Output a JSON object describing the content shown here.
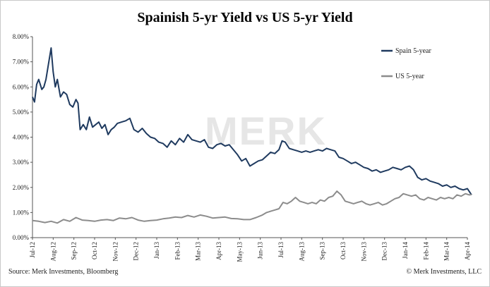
{
  "chart_data": {
    "type": "line",
    "title": "Spainish 5-yr Yield vs US 5-yr Yield",
    "xlabel": "",
    "ylabel": "",
    "ylim": [
      0,
      8
    ],
    "y_tick_labels": [
      "0.00%",
      "1.00%",
      "2.00%",
      "3.00%",
      "4.00%",
      "5.00%",
      "6.00%",
      "7.00%",
      "8.00%"
    ],
    "x_tick_labels": [
      "Jul-12",
      "Aug-12",
      "Sep-12",
      "Oct-12",
      "Nov-12",
      "Dec-12",
      "Jan-13",
      "Feb-13",
      "Mar-13",
      "Apr-13",
      "May-13",
      "Jun-13",
      "Jul-13",
      "Aug-13",
      "Sep-13",
      "Oct-13",
      "Nov-13",
      "Dec-13",
      "Jan-14",
      "Feb-14",
      "Mar-14",
      "Apr-14"
    ],
    "grid": false,
    "legend_position": "top-right",
    "watermark": "MERK",
    "series": [
      {
        "name": "Spain 5-year",
        "color": "#1f3a5f",
        "x": [
          0.0,
          0.1,
          0.2,
          0.3,
          0.45,
          0.55,
          0.65,
          0.75,
          0.9,
          1.0,
          1.1,
          1.2,
          1.35,
          1.5,
          1.65,
          1.8,
          1.95,
          2.1,
          2.2,
          2.3,
          2.45,
          2.6,
          2.75,
          2.9,
          3.05,
          3.2,
          3.35,
          3.5,
          3.65,
          3.8,
          3.95,
          4.1,
          4.3,
          4.5,
          4.7,
          4.9,
          5.1,
          5.3,
          5.5,
          5.7,
          5.9,
          6.1,
          6.3,
          6.5,
          6.7,
          6.9,
          7.1,
          7.3,
          7.5,
          7.7,
          7.9,
          8.1,
          8.3,
          8.5,
          8.7,
          8.9,
          9.1,
          9.3,
          9.5,
          9.7,
          9.9,
          10.1,
          10.3,
          10.5,
          10.7,
          10.9,
          11.1,
          11.3,
          11.5,
          11.7,
          11.9,
          12.05,
          12.2,
          12.4,
          12.6,
          12.8,
          13.0,
          13.2,
          13.4,
          13.6,
          13.8,
          14.0,
          14.2,
          14.4,
          14.6,
          14.8,
          15.0,
          15.2,
          15.4,
          15.6,
          15.8,
          16.0,
          16.2,
          16.4,
          16.6,
          16.8,
          17.0,
          17.2,
          17.4,
          17.6,
          17.8,
          18.0,
          18.2,
          18.4,
          18.6,
          18.8,
          19.0,
          19.2,
          19.4,
          19.6,
          19.8,
          20.0,
          20.2,
          20.4,
          20.6,
          20.8,
          21.0,
          21.2
        ],
        "y": [
          5.6,
          5.4,
          6.1,
          6.3,
          5.9,
          6.0,
          6.3,
          6.8,
          7.55,
          6.6,
          6.0,
          6.3,
          5.6,
          5.8,
          5.7,
          5.3,
          5.2,
          5.5,
          5.35,
          4.3,
          4.5,
          4.3,
          4.8,
          4.4,
          4.5,
          4.6,
          4.35,
          4.5,
          4.1,
          4.3,
          4.4,
          4.55,
          4.6,
          4.65,
          4.75,
          4.3,
          4.2,
          4.35,
          4.15,
          4.0,
          3.95,
          3.8,
          3.75,
          3.6,
          3.85,
          3.7,
          3.95,
          3.8,
          4.1,
          3.9,
          3.85,
          3.8,
          3.9,
          3.6,
          3.55,
          3.7,
          3.75,
          3.65,
          3.7,
          3.5,
          3.3,
          3.05,
          3.15,
          2.85,
          2.95,
          3.05,
          3.1,
          3.25,
          3.4,
          3.35,
          3.5,
          3.85,
          3.8,
          3.55,
          3.5,
          3.45,
          3.4,
          3.45,
          3.4,
          3.45,
          3.5,
          3.45,
          3.55,
          3.5,
          3.45,
          3.2,
          3.15,
          3.05,
          2.95,
          3.0,
          2.9,
          2.8,
          2.75,
          2.65,
          2.7,
          2.6,
          2.65,
          2.7,
          2.8,
          2.75,
          2.7,
          2.8,
          2.85,
          2.7,
          2.4,
          2.3,
          2.35,
          2.25,
          2.2,
          2.15,
          2.05,
          2.1,
          2.0,
          2.05,
          1.95,
          1.9,
          1.95,
          1.7
        ]
      },
      {
        "name": "US 5-year",
        "color": "#8c8c8c",
        "x": [
          0.0,
          0.3,
          0.6,
          0.9,
          1.2,
          1.5,
          1.8,
          2.1,
          2.4,
          2.7,
          3.0,
          3.3,
          3.6,
          3.9,
          4.2,
          4.5,
          4.8,
          5.1,
          5.4,
          5.7,
          6.0,
          6.3,
          6.6,
          6.9,
          7.2,
          7.5,
          7.8,
          8.1,
          8.4,
          8.7,
          9.0,
          9.3,
          9.6,
          9.9,
          10.2,
          10.5,
          10.8,
          11.1,
          11.3,
          11.5,
          11.7,
          11.9,
          12.1,
          12.3,
          12.5,
          12.7,
          12.9,
          13.1,
          13.3,
          13.5,
          13.7,
          13.9,
          14.1,
          14.3,
          14.5,
          14.7,
          14.9,
          15.1,
          15.3,
          15.5,
          15.7,
          15.9,
          16.1,
          16.3,
          16.5,
          16.7,
          16.9,
          17.1,
          17.3,
          17.5,
          17.7,
          17.9,
          18.1,
          18.3,
          18.5,
          18.7,
          18.9,
          19.1,
          19.3,
          19.5,
          19.7,
          19.9,
          20.1,
          20.3,
          20.5,
          20.7,
          20.9,
          21.1,
          21.2
        ],
        "y": [
          0.68,
          0.65,
          0.6,
          0.65,
          0.58,
          0.72,
          0.65,
          0.8,
          0.7,
          0.68,
          0.65,
          0.7,
          0.72,
          0.68,
          0.78,
          0.75,
          0.8,
          0.7,
          0.65,
          0.68,
          0.7,
          0.75,
          0.78,
          0.82,
          0.8,
          0.88,
          0.82,
          0.9,
          0.85,
          0.78,
          0.8,
          0.82,
          0.76,
          0.75,
          0.72,
          0.72,
          0.8,
          0.9,
          1.0,
          1.05,
          1.1,
          1.15,
          1.4,
          1.35,
          1.45,
          1.6,
          1.45,
          1.4,
          1.35,
          1.4,
          1.35,
          1.5,
          1.45,
          1.6,
          1.65,
          1.85,
          1.7,
          1.45,
          1.4,
          1.35,
          1.4,
          1.45,
          1.35,
          1.3,
          1.35,
          1.4,
          1.3,
          1.35,
          1.45,
          1.55,
          1.6,
          1.75,
          1.7,
          1.65,
          1.7,
          1.55,
          1.5,
          1.6,
          1.55,
          1.5,
          1.6,
          1.55,
          1.6,
          1.55,
          1.7,
          1.65,
          1.75,
          1.7,
          1.72
        ]
      }
    ]
  },
  "footer": {
    "source": "Source: Merk Investments, Bloomberg",
    "copyright": "© Merk Investments, LLC"
  }
}
